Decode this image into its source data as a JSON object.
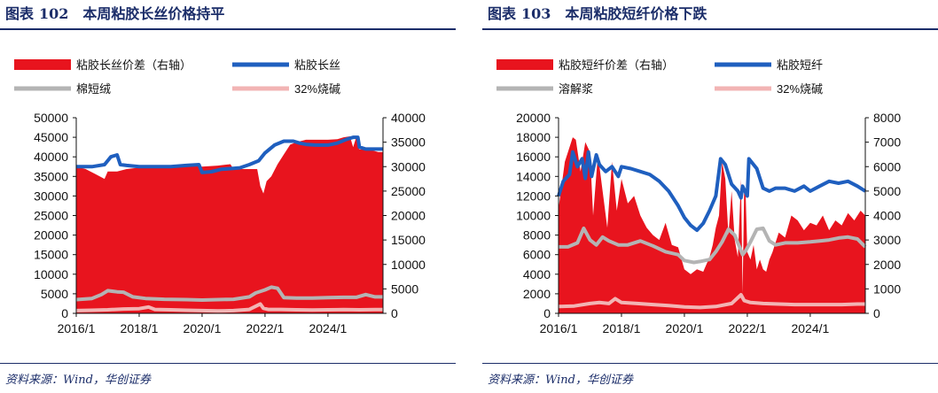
{
  "charts": [
    {
      "figure_label": "图表",
      "figure_number": "102",
      "title": "本周粘胶长丝价格持平",
      "source": "资料来源：Wind，华创证券",
      "legend": [
        "粘胶长丝价差（右轴）",
        "粘胶长丝",
        "棉短绒",
        "32%烧碱"
      ]
    },
    {
      "figure_label": "图表",
      "figure_number": "103",
      "title": "本周粘胶短纤价格下跌",
      "source": "资料来源：Wind，华创证券",
      "legend": [
        "粘胶短纤价差（右轴）",
        "粘胶短纤",
        "溶解浆",
        "32%烧碱"
      ]
    }
  ],
  "chart_data": [
    {
      "type": "line",
      "title": "本周粘胶长丝价格持平",
      "x_ticks": [
        "2016/1",
        "2018/1",
        "2020/1",
        "2022/1",
        "2024/1"
      ],
      "x_range": [
        2016.0,
        2025.75
      ],
      "ylim_left": [
        0,
        50000
      ],
      "yticks_left": [
        0,
        5000,
        10000,
        15000,
        20000,
        25000,
        30000,
        35000,
        40000,
        45000,
        50000
      ],
      "ylim_right": [
        0,
        40000
      ],
      "yticks_right": [
        0,
        5000,
        10000,
        15000,
        20000,
        25000,
        30000,
        35000,
        40000
      ],
      "legend_position": "top",
      "series": [
        {
          "name": "粘胶长丝价差（右轴）",
          "kind": "area",
          "axis": "right",
          "color": "#e8141e",
          "x": [
            2016.0,
            2016.3,
            2016.6,
            2016.9,
            2017.0,
            2017.3,
            2017.6,
            2018.0,
            2018.5,
            2019.0,
            2019.5,
            2020.0,
            2020.5,
            2020.9,
            2021.0,
            2021.5,
            2021.75,
            2021.85,
            2021.95,
            2022.05,
            2022.2,
            2022.4,
            2022.6,
            2022.8,
            2023.0,
            2023.3,
            2023.6,
            2024.0,
            2024.3,
            2024.5,
            2024.7,
            2024.8,
            2024.9,
            2025.0,
            2025.3,
            2025.6,
            2025.75
          ],
          "values": [
            30000,
            29500,
            28500,
            27500,
            29000,
            29000,
            29500,
            29800,
            29800,
            30000,
            30300,
            30000,
            30200,
            30500,
            29500,
            29500,
            29500,
            26000,
            24500,
            27000,
            28000,
            30500,
            32500,
            34500,
            35000,
            35500,
            35500,
            35500,
            35600,
            36000,
            36200,
            34000,
            36000,
            33500,
            33500,
            33000,
            33000
          ]
        },
        {
          "name": "粘胶长丝",
          "kind": "line",
          "axis": "left",
          "color": "#1f5fbf",
          "x": [
            2016.0,
            2016.5,
            2016.9,
            2017.1,
            2017.3,
            2017.4,
            2017.6,
            2018.0,
            2018.5,
            2019.0,
            2019.5,
            2019.9,
            2020.0,
            2020.3,
            2020.6,
            2020.9,
            2021.2,
            2021.5,
            2021.8,
            2022.0,
            2022.3,
            2022.6,
            2022.9,
            2023.1,
            2023.3,
            2023.6,
            2024.0,
            2024.3,
            2024.6,
            2024.8,
            2024.95,
            2025.0,
            2025.2,
            2025.5,
            2025.75
          ],
          "values": [
            37500,
            37500,
            38000,
            40000,
            40500,
            38000,
            37800,
            37500,
            37500,
            37500,
            37800,
            38000,
            36000,
            36200,
            36800,
            37000,
            37200,
            38000,
            39000,
            41000,
            43000,
            44000,
            44000,
            43500,
            43200,
            43000,
            43000,
            43500,
            44500,
            45000,
            45000,
            42500,
            42000,
            42000,
            42000
          ]
        },
        {
          "name": "棉短绒",
          "kind": "line",
          "axis": "left",
          "color": "#b4b4b4",
          "x": [
            2016.0,
            2016.5,
            2016.8,
            2017.0,
            2017.3,
            2017.5,
            2017.8,
            2018.2,
            2018.8,
            2019.5,
            2020.0,
            2020.5,
            2021.0,
            2021.5,
            2021.7,
            2022.0,
            2022.2,
            2022.4,
            2022.6,
            2023.0,
            2023.5,
            2024.0,
            2024.5,
            2024.9,
            2025.2,
            2025.5,
            2025.75
          ],
          "values": [
            3500,
            3800,
            4800,
            5800,
            5500,
            5400,
            4200,
            3800,
            3600,
            3500,
            3400,
            3500,
            3600,
            4200,
            5200,
            6000,
            6700,
            6400,
            4000,
            3900,
            3900,
            4000,
            4100,
            4100,
            4800,
            4200,
            4200
          ]
        },
        {
          "name": "32%烧碱",
          "kind": "line",
          "axis": "left",
          "color": "#f2b4b4",
          "x": [
            2016.0,
            2016.5,
            2017.0,
            2017.5,
            2018.0,
            2018.3,
            2018.5,
            2019.0,
            2019.5,
            2020.0,
            2020.5,
            2021.0,
            2021.5,
            2021.85,
            2021.95,
            2022.1,
            2022.5,
            2023.0,
            2023.5,
            2024.0,
            2024.5,
            2025.0,
            2025.5,
            2025.75
          ],
          "values": [
            700,
            800,
            900,
            1100,
            1200,
            1600,
            1000,
            900,
            800,
            700,
            600,
            700,
            1000,
            2400,
            1300,
            1000,
            1000,
            900,
            850,
            900,
            950,
            900,
            950,
            950
          ]
        }
      ]
    },
    {
      "type": "line",
      "title": "本周粘胶短纤价格下跌",
      "x_ticks": [
        "2016/1",
        "2018/1",
        "2020/1",
        "2022/1",
        "2024/1"
      ],
      "x_range": [
        2016.0,
        2025.75
      ],
      "ylim_left": [
        0,
        20000
      ],
      "yticks_left": [
        0,
        2000,
        4000,
        6000,
        8000,
        10000,
        12000,
        14000,
        16000,
        18000,
        20000
      ],
      "ylim_right": [
        0,
        8000
      ],
      "yticks_right": [
        0,
        1000,
        2000,
        3000,
        4000,
        5000,
        6000,
        7000,
        8000
      ],
      "legend_position": "top",
      "series": [
        {
          "name": "粘胶短纤价差（右轴）",
          "kind": "area",
          "axis": "right",
          "color": "#e8141e",
          "x": [
            2016.0,
            2016.2,
            2016.45,
            2016.55,
            2016.7,
            2016.85,
            2017.0,
            2017.1,
            2017.25,
            2017.4,
            2017.55,
            2017.7,
            2017.85,
            2018.0,
            2018.2,
            2018.4,
            2018.6,
            2018.8,
            2019.0,
            2019.2,
            2019.4,
            2019.6,
            2019.8,
            2020.0,
            2020.2,
            2020.4,
            2020.6,
            2020.8,
            2020.9,
            2021.0,
            2021.1,
            2021.2,
            2021.3,
            2021.4,
            2021.5,
            2021.6,
            2021.7,
            2021.8,
            2021.85,
            2021.9,
            2021.95,
            2022.0,
            2022.1,
            2022.2,
            2022.3,
            2022.4,
            2022.5,
            2022.6,
            2022.7,
            2022.8,
            2023.0,
            2023.2,
            2023.4,
            2023.6,
            2023.8,
            2024.0,
            2024.2,
            2024.4,
            2024.6,
            2024.8,
            2025.0,
            2025.2,
            2025.4,
            2025.6,
            2025.75
          ],
          "values": [
            4300,
            6200,
            7200,
            7100,
            5800,
            7000,
            6600,
            4000,
            6500,
            5000,
            3500,
            6200,
            4200,
            5500,
            4500,
            4800,
            4000,
            3500,
            3200,
            3000,
            3700,
            2800,
            2700,
            1800,
            1600,
            1800,
            1700,
            2300,
            2800,
            3500,
            4000,
            6200,
            5500,
            3200,
            5000,
            3000,
            2300,
            5500,
            800,
            5200,
            4800,
            2500,
            2200,
            2800,
            1800,
            2200,
            1800,
            1700,
            2200,
            2500,
            3300,
            3100,
            4000,
            3800,
            3400,
            3700,
            3600,
            4000,
            3400,
            3800,
            3600,
            4100,
            3800,
            4200,
            4000
          ]
        },
        {
          "name": "粘胶短纤",
          "kind": "line",
          "axis": "left",
          "color": "#1f5fbf",
          "x": [
            2016.0,
            2016.15,
            2016.35,
            2016.45,
            2016.6,
            2016.75,
            2016.85,
            2016.95,
            2017.05,
            2017.2,
            2017.3,
            2017.5,
            2017.7,
            2017.9,
            2018.0,
            2018.3,
            2018.6,
            2018.9,
            2019.2,
            2019.5,
            2019.8,
            2020.0,
            2020.2,
            2020.4,
            2020.6,
            2020.8,
            2021.0,
            2021.15,
            2021.3,
            2021.5,
            2021.7,
            2021.8,
            2021.85,
            2022.0,
            2022.05,
            2022.3,
            2022.5,
            2022.7,
            2022.9,
            2023.2,
            2023.5,
            2023.8,
            2024.0,
            2024.3,
            2024.6,
            2024.9,
            2025.2,
            2025.5,
            2025.75
          ],
          "values": [
            12000,
            13500,
            14200,
            16500,
            15000,
            15800,
            13800,
            16500,
            14000,
            16200,
            15200,
            14500,
            15000,
            14000,
            15000,
            14800,
            14500,
            14200,
            13500,
            12500,
            11000,
            9800,
            9000,
            8500,
            9200,
            10500,
            12000,
            15800,
            15200,
            13200,
            12500,
            11800,
            13000,
            12000,
            15800,
            14800,
            12800,
            12500,
            12800,
            12800,
            12500,
            13000,
            12500,
            13000,
            13500,
            13300,
            13500,
            13000,
            12500
          ]
        },
        {
          "name": "溶解浆",
          "kind": "line",
          "axis": "left",
          "color": "#b4b4b4",
          "x": [
            2016.0,
            2016.3,
            2016.6,
            2016.8,
            2017.0,
            2017.2,
            2017.4,
            2017.6,
            2017.9,
            2018.2,
            2018.6,
            2019.0,
            2019.4,
            2019.8,
            2020.0,
            2020.3,
            2020.5,
            2020.8,
            2021.0,
            2021.2,
            2021.4,
            2021.6,
            2021.75,
            2021.85,
            2021.95,
            2022.1,
            2022.3,
            2022.5,
            2022.7,
            2022.9,
            2023.2,
            2023.6,
            2024.0,
            2024.3,
            2024.6,
            2024.9,
            2025.2,
            2025.5,
            2025.75
          ],
          "values": [
            6800,
            6800,
            7200,
            8700,
            7500,
            7000,
            7800,
            7400,
            7000,
            7000,
            7400,
            6900,
            6300,
            6000,
            5400,
            5200,
            5300,
            5500,
            6300,
            7300,
            8600,
            8000,
            6800,
            6000,
            6400,
            7300,
            8600,
            8700,
            7400,
            7000,
            7200,
            7200,
            7300,
            7400,
            7500,
            7700,
            7800,
            7600,
            6800
          ]
        },
        {
          "name": "32%烧碱",
          "kind": "line",
          "axis": "left",
          "color": "#f2b4b4",
          "x": [
            2016.0,
            2016.5,
            2017.0,
            2017.3,
            2017.6,
            2017.8,
            2018.0,
            2018.5,
            2019.0,
            2019.5,
            2020.0,
            2020.5,
            2021.0,
            2021.5,
            2021.8,
            2021.9,
            2022.1,
            2022.5,
            2023.0,
            2023.5,
            2024.0,
            2024.5,
            2025.0,
            2025.5,
            2025.75
          ],
          "values": [
            700,
            750,
            1000,
            1100,
            1000,
            1500,
            1100,
            1000,
            900,
            800,
            650,
            600,
            700,
            1000,
            1900,
            1300,
            1100,
            1000,
            950,
            900,
            900,
            900,
            900,
            950,
            950
          ]
        }
      ]
    }
  ]
}
